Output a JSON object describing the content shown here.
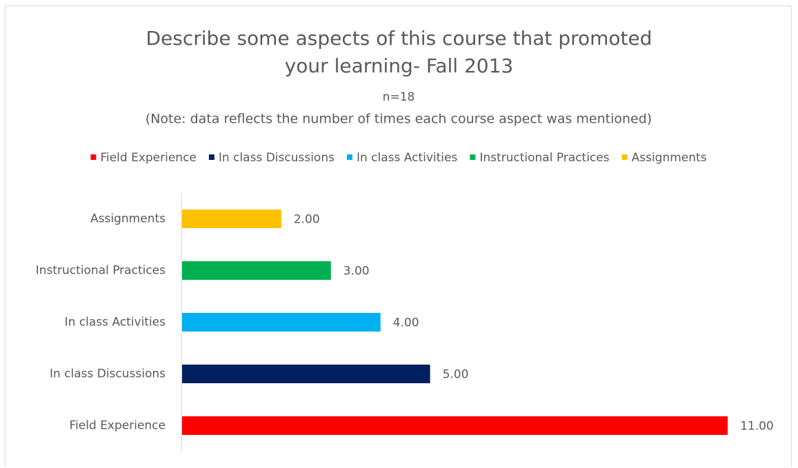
{
  "chart_data": {
    "type": "bar",
    "orientation": "horizontal",
    "title": "Describe some aspects of this course that promoted your learning- Fall 2013",
    "subtitle": "n=18",
    "note": "(Note: data reflects the number of times each course aspect was mentioned)",
    "categories": [
      "Field Experience",
      "In class Discussions",
      "In class Activities",
      "Instructional Practices",
      "Assignments"
    ],
    "series": [
      {
        "name": "Field Experience",
        "color": "#ff0000",
        "values": [
          11,
          null,
          null,
          null,
          null
        ],
        "value_labels": [
          "11.00",
          null,
          null,
          null,
          null
        ]
      },
      {
        "name": "In class Discussions",
        "color": "#002060",
        "values": [
          null,
          5,
          null,
          null,
          null
        ],
        "value_labels": [
          null,
          "5.00",
          null,
          null,
          null
        ]
      },
      {
        "name": "In class Activities",
        "color": "#00b0f0",
        "values": [
          null,
          null,
          4,
          null,
          null
        ],
        "value_labels": [
          null,
          null,
          "4.00",
          null,
          null
        ]
      },
      {
        "name": "Instructional Practices",
        "color": "#00b050",
        "values": [
          null,
          null,
          null,
          3,
          null
        ],
        "value_labels": [
          null,
          null,
          null,
          "3.00",
          null
        ]
      },
      {
        "name": "Assignments",
        "color": "#ffc000",
        "values": [
          null,
          null,
          null,
          null,
          2
        ],
        "value_labels": [
          null,
          null,
          null,
          null,
          "2.00"
        ]
      }
    ],
    "xlim": [
      0,
      12
    ],
    "legend": "top"
  }
}
